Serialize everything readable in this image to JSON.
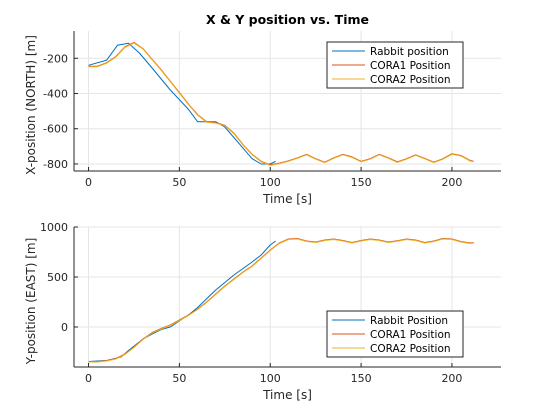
{
  "colors": {
    "rabbit": "#0072BD",
    "cora1": "#D95319",
    "cora2": "#EDB120",
    "grid": "#e6e6e6",
    "axis": "#262626"
  },
  "chart_data": [
    {
      "type": "line",
      "title": "X & Y position vs. Time",
      "xlabel": "Time [s]",
      "ylabel": "X-position (NORTH) [m]",
      "xlim": [
        -8,
        227
      ],
      "ylim": [
        -840,
        -45
      ],
      "xticks": [
        0,
        50,
        100,
        150,
        200
      ],
      "yticks": [
        -800,
        -600,
        -400,
        -200
      ],
      "grid": true,
      "legend_position": "top-right",
      "series": [
        {
          "name": "Rabbit position",
          "color_key": "rabbit",
          "x": [
            0,
            10,
            16,
            22,
            28,
            35,
            45,
            55,
            60,
            65,
            70,
            75,
            80,
            85,
            90,
            95,
            100,
            103
          ],
          "y": [
            -240,
            -210,
            -125,
            -115,
            -170,
            -255,
            -380,
            -490,
            -560,
            -560,
            -560,
            -590,
            -650,
            -710,
            -770,
            -800,
            -800,
            -785
          ]
        },
        {
          "name": "CORA1 Position",
          "color_key": "cora1",
          "x": [
            0,
            5,
            10,
            15,
            20,
            25,
            30,
            35,
            40,
            45,
            50,
            55,
            60,
            65,
            70,
            75,
            80,
            85,
            90,
            95,
            100,
            105,
            110,
            115,
            120,
            125,
            130,
            135,
            140,
            145,
            150,
            155,
            160,
            165,
            170,
            175,
            180,
            185,
            190,
            195,
            200,
            205,
            210,
            212
          ],
          "y": [
            -245,
            -245,
            -225,
            -190,
            -135,
            -110,
            -145,
            -205,
            -265,
            -330,
            -395,
            -460,
            -520,
            -560,
            -565,
            -580,
            -625,
            -690,
            -745,
            -785,
            -805,
            -795,
            -782,
            -765,
            -745,
            -770,
            -790,
            -765,
            -745,
            -760,
            -785,
            -770,
            -745,
            -765,
            -788,
            -770,
            -748,
            -768,
            -790,
            -770,
            -742,
            -752,
            -780,
            -785
          ]
        },
        {
          "name": "CORA2 Position",
          "color_key": "cora2",
          "x": [
            0,
            5,
            10,
            15,
            20,
            25,
            30,
            35,
            40,
            45,
            50,
            55,
            60,
            65,
            70,
            75,
            80,
            85,
            90,
            95,
            100,
            105,
            110,
            115,
            120,
            125,
            130,
            135,
            140,
            145,
            150,
            155,
            160,
            165,
            170,
            175,
            180,
            185,
            190,
            195,
            200,
            205,
            210,
            212
          ],
          "y": [
            -248,
            -248,
            -228,
            -193,
            -138,
            -113,
            -148,
            -208,
            -268,
            -333,
            -398,
            -463,
            -523,
            -563,
            -568,
            -583,
            -628,
            -693,
            -748,
            -788,
            -808,
            -798,
            -785,
            -768,
            -748,
            -773,
            -793,
            -768,
            -748,
            -763,
            -788,
            -773,
            -748,
            -768,
            -791,
            -773,
            -751,
            -771,
            -793,
            -773,
            -745,
            -755,
            -783,
            -788
          ]
        }
      ]
    },
    {
      "type": "line",
      "title": "",
      "xlabel": "Time [s]",
      "ylabel": "Y-position (EAST) [m]",
      "xlim": [
        -8,
        227
      ],
      "ylim": [
        -400,
        1000
      ],
      "xticks": [
        0,
        50,
        100,
        150,
        200
      ],
      "yticks": [
        0,
        500,
        1000
      ],
      "grid": true,
      "legend_position": "bottom-right",
      "series": [
        {
          "name": "Rabbit Position",
          "color_key": "rabbit",
          "x": [
            0,
            10,
            18,
            22,
            30,
            35,
            40,
            45,
            55,
            60,
            70,
            80,
            90,
            95,
            100,
            103
          ],
          "y": [
            -345,
            -335,
            -300,
            -235,
            -120,
            -70,
            -25,
            0,
            120,
            195,
            370,
            520,
            650,
            720,
            820,
            860
          ]
        },
        {
          "name": "CORA1 Position",
          "color_key": "cora1",
          "x": [
            0,
            5,
            10,
            15,
            20,
            25,
            30,
            35,
            40,
            45,
            50,
            55,
            60,
            65,
            70,
            75,
            80,
            85,
            90,
            95,
            100,
            105,
            110,
            115,
            120,
            125,
            130,
            135,
            140,
            145,
            150,
            155,
            160,
            165,
            170,
            175,
            180,
            185,
            190,
            195,
            200,
            205,
            210,
            212
          ],
          "y": [
            -345,
            -345,
            -335,
            -315,
            -270,
            -200,
            -120,
            -55,
            -15,
            20,
            70,
            120,
            180,
            250,
            330,
            410,
            480,
            550,
            610,
            690,
            770,
            840,
            880,
            885,
            860,
            850,
            870,
            880,
            865,
            845,
            865,
            880,
            870,
            850,
            862,
            880,
            870,
            845,
            860,
            885,
            880,
            855,
            840,
            845
          ]
        },
        {
          "name": "CORA2 Position",
          "color_key": "cora2",
          "x": [
            0,
            5,
            10,
            15,
            20,
            25,
            30,
            35,
            40,
            45,
            50,
            55,
            60,
            65,
            70,
            75,
            80,
            85,
            90,
            95,
            100,
            105,
            110,
            115,
            120,
            125,
            130,
            135,
            140,
            145,
            150,
            155,
            160,
            165,
            170,
            175,
            180,
            185,
            190,
            195,
            200,
            205,
            210,
            212
          ],
          "y": [
            -350,
            -350,
            -340,
            -320,
            -275,
            -205,
            -125,
            -60,
            -20,
            15,
            65,
            115,
            175,
            245,
            325,
            405,
            475,
            545,
            605,
            685,
            765,
            835,
            875,
            880,
            855,
            845,
            865,
            875,
            860,
            840,
            860,
            875,
            865,
            845,
            857,
            875,
            865,
            840,
            855,
            880,
            875,
            850,
            835,
            840
          ]
        }
      ]
    }
  ]
}
